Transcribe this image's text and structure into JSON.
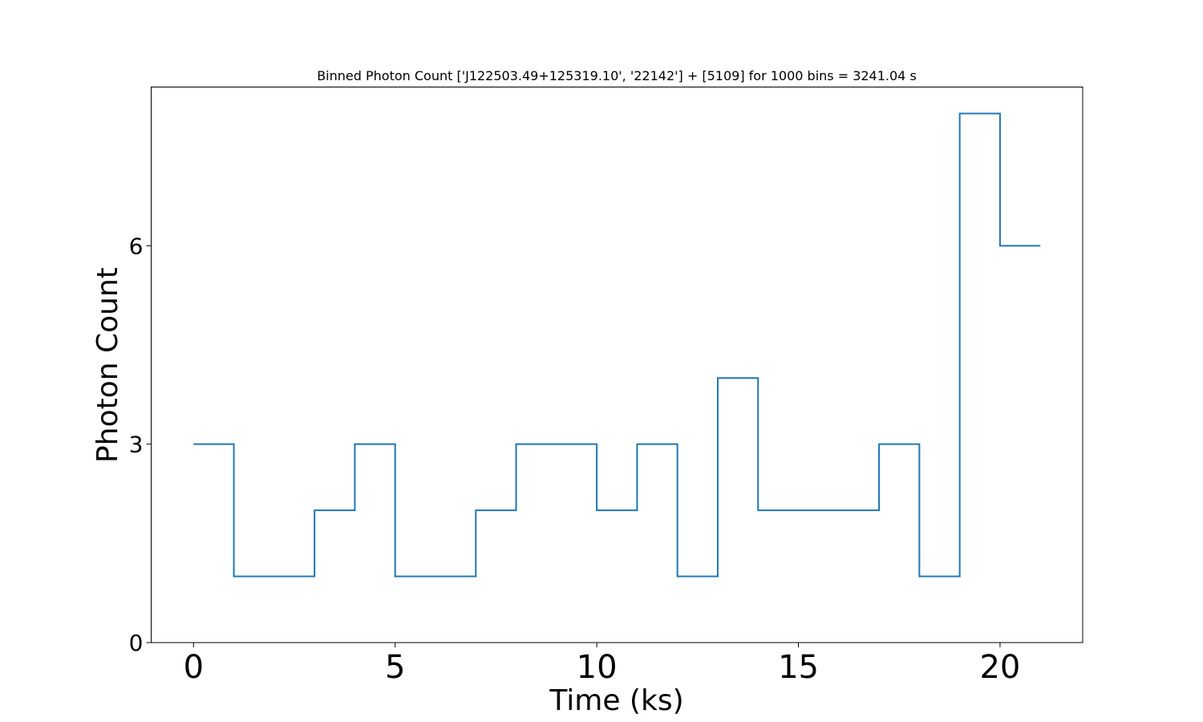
{
  "chart_data": {
    "type": "line",
    "drawstyle": "steps-post",
    "title": "Binned Photon Count ['J122503.49+125319.10', '22142'] + [5109] for 1000 bins = 3241.04 s",
    "xlabel": "Time (ks)",
    "ylabel": "Photon Count",
    "xlim": [
      -1.05,
      22.05
    ],
    "ylim": [
      0,
      8.4
    ],
    "xticks": [
      0,
      5,
      10,
      15,
      20
    ],
    "yticks": [
      0,
      3,
      6
    ],
    "grid": false,
    "legend": false,
    "series": [
      {
        "color": "#1f77b4",
        "x": [
          0,
          1,
          2,
          3,
          4,
          5,
          6,
          7,
          8,
          9,
          10,
          11,
          12,
          13,
          14,
          15,
          16,
          17,
          18,
          19,
          20,
          21
        ],
        "y": [
          3,
          1,
          1,
          2,
          3,
          1,
          1,
          2,
          3,
          3,
          2,
          3,
          1,
          4,
          2,
          2,
          2,
          3,
          1,
          8,
          6,
          6
        ]
      }
    ]
  }
}
